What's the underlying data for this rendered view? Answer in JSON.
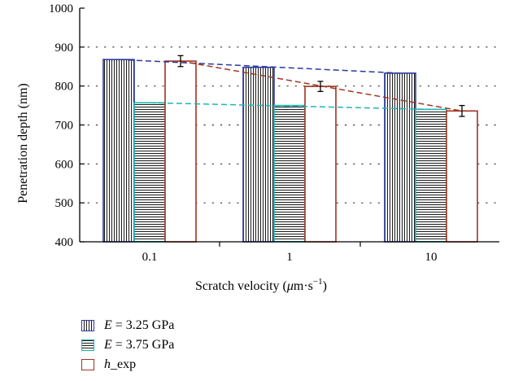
{
  "chart_data": {
    "type": "bar",
    "categories": [
      "0.1",
      "1",
      "10"
    ],
    "xlabel_parts": {
      "main": "Scratch velocity (",
      "mu": "μ",
      "unit": "m·s",
      "sup": "−1",
      "close": ")"
    },
    "ylabel": "Penetration depth (nm)",
    "ylim": [
      400,
      1000
    ],
    "yticks": [
      400,
      500,
      600,
      700,
      800,
      900,
      1000
    ],
    "grid": "dotted",
    "series": [
      {
        "name": "E = 3.25 GPa",
        "values": [
          868,
          848,
          833
        ],
        "color": "#2b3aa0",
        "pattern": "vertical-hatch"
      },
      {
        "name": "E = 3.75 GPa",
        "values": [
          757,
          750,
          740
        ],
        "color": "#1fb5b5",
        "pattern": "horizontal-hatch"
      },
      {
        "name": "h_exp",
        "values": [
          864,
          799,
          736
        ],
        "errors": [
          14,
          13,
          14
        ],
        "color": "#a0341f",
        "pattern": "none"
      }
    ],
    "trend_lines": [
      {
        "series": "E = 3.25 GPa",
        "color": "#2b3aa0",
        "style": "dashed"
      },
      {
        "series": "E = 3.75 GPa",
        "color": "#1fb5b5",
        "style": "dashed"
      },
      {
        "series": "h_exp",
        "color": "#a0341f",
        "style": "dashed"
      }
    ],
    "legend": {
      "position": "bottom-left",
      "items": [
        {
          "italic": "E",
          "rest": " = 3.25 GPa"
        },
        {
          "italic": "E",
          "rest": " = 3.75 GPa"
        },
        {
          "italic": "h",
          "rest": "_exp"
        }
      ]
    }
  }
}
